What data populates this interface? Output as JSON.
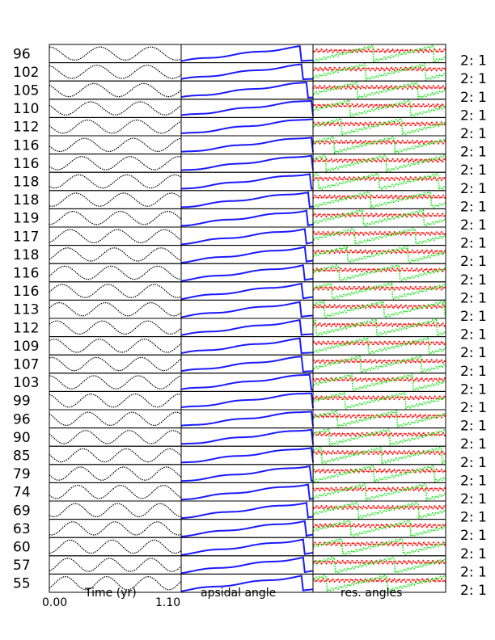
{
  "chart_data": {
    "type": "line",
    "panels": [
      {
        "xlabel": "Time (yr)",
        "content": "sinusoidal time series",
        "line_color": "#000000",
        "line_style": "dotted"
      },
      {
        "xlabel": "apsidal angle",
        "content": "stepwise increasing apsidal angle",
        "line_color": "#1a1aff"
      },
      {
        "xlabel": "res. angles",
        "content": "oscillating and circulating resonant angles",
        "series_colors": [
          "#ff1a1a",
          "#22e622"
        ]
      }
    ],
    "x_ticks": [
      "0.00",
      "1.10"
    ],
    "xlim": [
      0.0,
      1.1
    ],
    "row_labels": [
      "96",
      "102",
      "105",
      "110",
      "112",
      "116",
      "116",
      "118",
      "118",
      "119",
      "117",
      "118",
      "116",
      "116",
      "113",
      "112",
      "109",
      "107",
      "103",
      "99",
      "96",
      "90",
      "85",
      "79",
      "74",
      "69",
      "63",
      "60",
      "57",
      "55"
    ],
    "resonance_label": "2: 1",
    "grid": false
  }
}
